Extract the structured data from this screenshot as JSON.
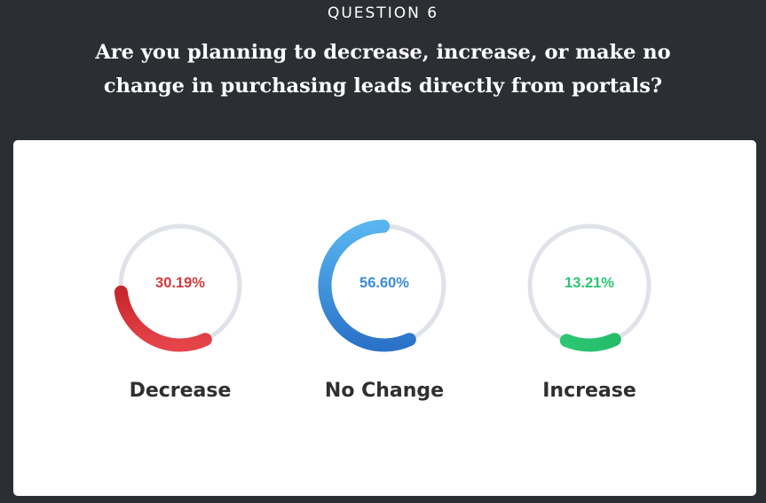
{
  "header": {
    "eyebrow": "QUESTION 6",
    "question": "Are you planning to decrease, increase, or make no change in purchasing leads directly from portals?"
  },
  "chart_data": {
    "type": "pie",
    "categories": [
      "Decrease",
      "No Change",
      "Increase"
    ],
    "values": [
      30.19,
      56.6,
      13.21
    ],
    "value_labels": [
      "30.19%",
      "56.60%",
      "13.21%"
    ],
    "colors": [
      "#d33a3f",
      "#3d8ad6",
      "#2dc673"
    ],
    "track_color": "#dfe2e8"
  }
}
